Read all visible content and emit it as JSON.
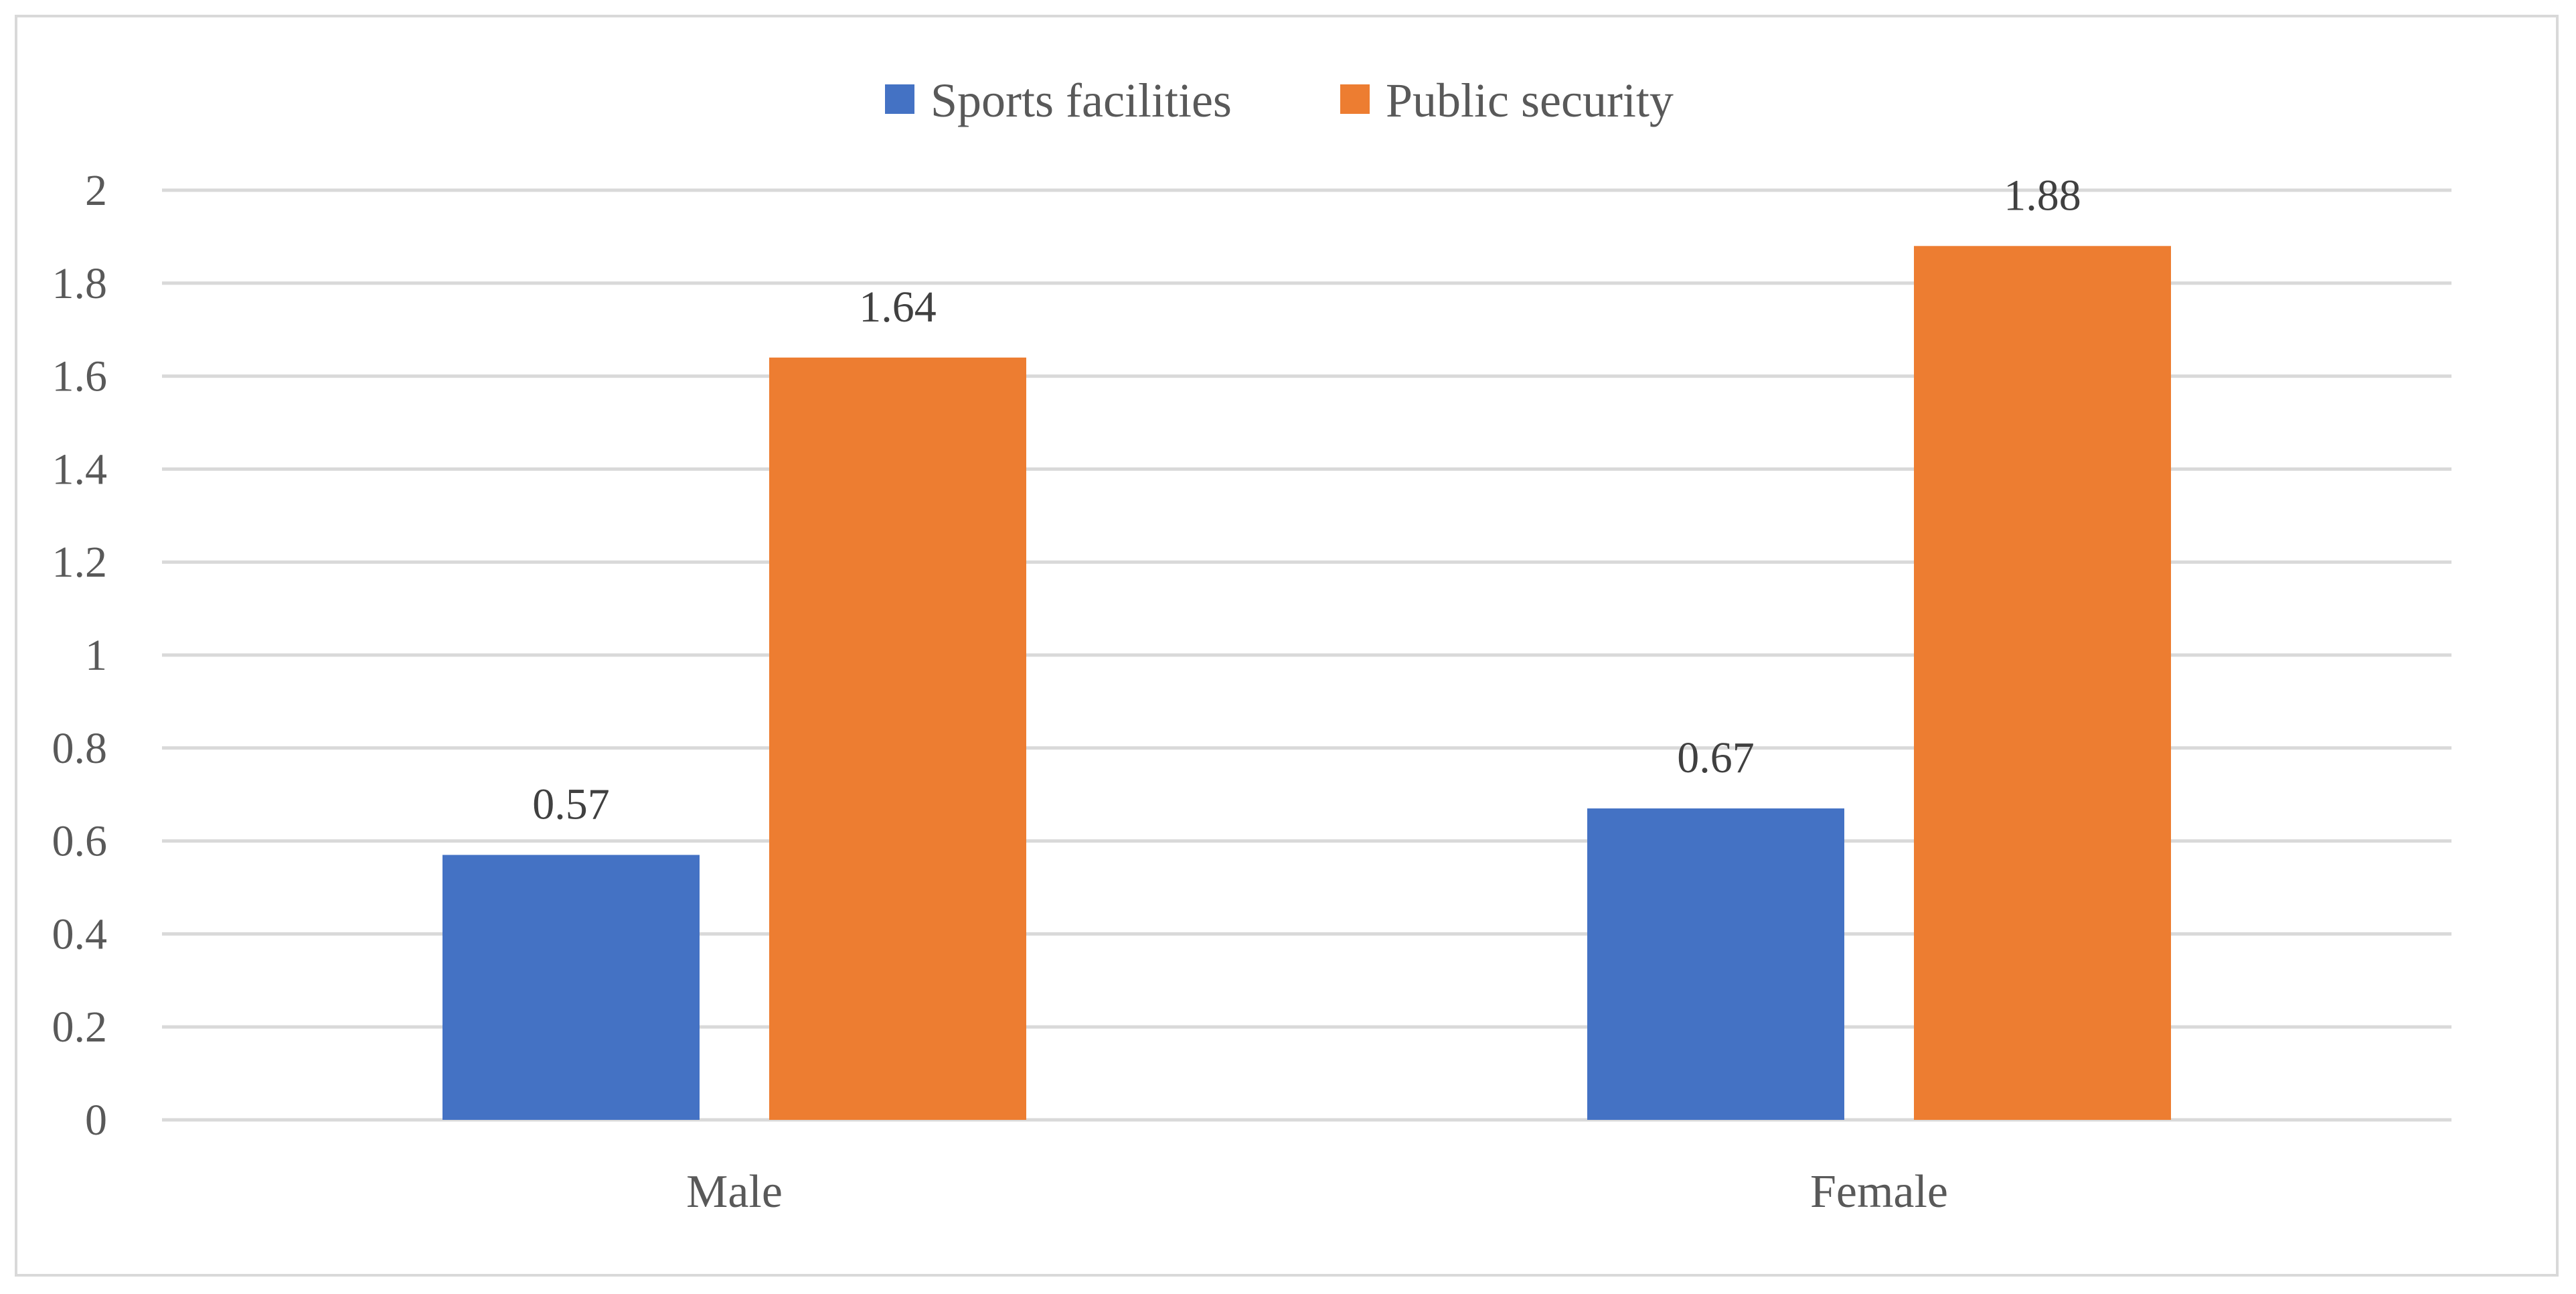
{
  "chart_data": {
    "type": "bar",
    "title": "",
    "xlabel": "",
    "ylabel": "",
    "categories": [
      "Male",
      "Female"
    ],
    "series": [
      {
        "name": "Sports facilities",
        "color": "#4472C4",
        "values": [
          0.57,
          0.67
        ]
      },
      {
        "name": "Public security",
        "color": "#ED7D31",
        "values": [
          1.64,
          1.88
        ]
      }
    ],
    "ylim": [
      0,
      2
    ],
    "yticks": [
      "0",
      "0.2",
      "0.4",
      "0.6",
      "0.8",
      "1",
      "1.2",
      "1.4",
      "1.6",
      "1.8",
      "2"
    ],
    "grid": true,
    "legend_position": "top-center"
  }
}
